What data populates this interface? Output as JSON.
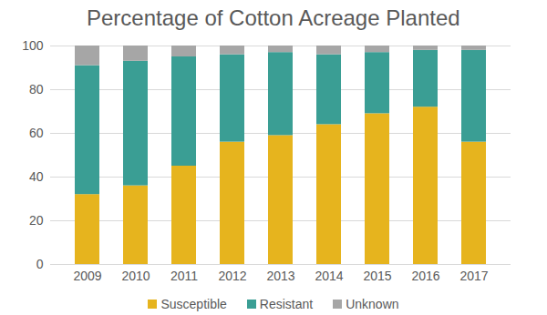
{
  "chart_data": {
    "type": "bar",
    "stacked": true,
    "title": "Percentage of Cotton Acreage Planted",
    "categories": [
      "2009",
      "2010",
      "2011",
      "2012",
      "2013",
      "2014",
      "2015",
      "2016",
      "2017"
    ],
    "series": [
      {
        "name": "Susceptible",
        "color": "#e6b41e",
        "values": [
          32,
          36,
          45,
          56,
          59,
          64,
          69,
          72,
          56
        ]
      },
      {
        "name": "Resistant",
        "color": "#3a9e94",
        "values": [
          59,
          57,
          50,
          40,
          38,
          32,
          28,
          26,
          42
        ]
      },
      {
        "name": "Unknown",
        "color": "#a6a6a6",
        "values": [
          9,
          7,
          5,
          4,
          3,
          4,
          3,
          2,
          2
        ]
      }
    ],
    "ylim": [
      0,
      100
    ],
    "yticks": [
      0,
      20,
      40,
      60,
      80,
      100
    ],
    "grid": true,
    "legend": "bottom"
  }
}
